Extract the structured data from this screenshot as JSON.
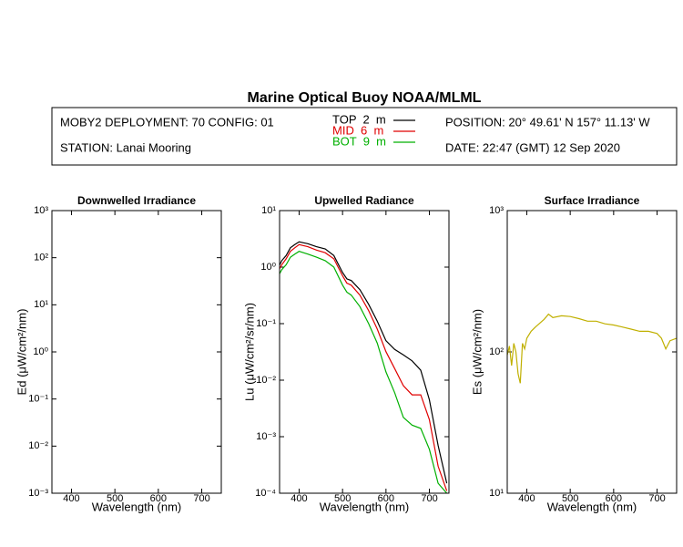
{
  "title": "Marine Optical Buoy NOAA/MLML",
  "header": {
    "deployment": "MOBY2 DEPLOYMENT: 70 CONFIG: 01",
    "station": "STATION: Lanai Mooring",
    "position": "POSITION: 20° 49.61' N   157° 11.13' W",
    "date": "DATE: 22:47 (GMT) 12 Sep 2020"
  },
  "chart_data": [
    {
      "type": "line",
      "title": "Downwelled Irradiance",
      "xlabel": "Wavelength (nm)",
      "ylabel": "Ed  (μW/cm²/nm)",
      "log_y": true,
      "xlim": [
        355,
        745
      ],
      "xticks": [
        400,
        500,
        600,
        700
      ],
      "ylim": [
        0.001,
        1000
      ],
      "yticks": [
        {
          "value": 0.001,
          "label": "10⁻³"
        },
        {
          "value": 0.01,
          "label": "10⁻²"
        },
        {
          "value": 0.1,
          "label": "10⁻¹"
        },
        {
          "value": 1,
          "label": "10⁰"
        },
        {
          "value": 10,
          "label": "10¹"
        },
        {
          "value": 100,
          "label": "10²"
        },
        {
          "value": 1000,
          "label": "10³"
        }
      ]
    },
    {
      "type": "line",
      "title": "Upwelled Radiance",
      "xlabel": "Wavelength (nm)",
      "ylabel": "Lu  (μW/cm²/sr/nm)",
      "log_y": true,
      "xlim": [
        355,
        745
      ],
      "xticks": [
        400,
        500,
        600,
        700
      ],
      "ylim": [
        0.0001,
        10
      ],
      "yticks": [
        {
          "value": 0.0001,
          "label": "10⁻⁴"
        },
        {
          "value": 0.001,
          "label": "10⁻³"
        },
        {
          "value": 0.01,
          "label": "10⁻²"
        },
        {
          "value": 0.1,
          "label": "10⁻¹"
        },
        {
          "value": 1,
          "label": "10⁰"
        },
        {
          "value": 10,
          "label": "10¹"
        }
      ],
      "x": [
        350,
        360,
        370,
        380,
        390,
        400,
        410,
        420,
        440,
        460,
        480,
        500,
        510,
        520,
        540,
        560,
        580,
        600,
        620,
        640,
        660,
        680,
        700,
        720,
        740
      ],
      "series": [
        {
          "name": "TOP  2  m",
          "color": "#000000",
          "values": [
            0.9,
            1.3,
            1.6,
            2.2,
            2.5,
            2.8,
            2.7,
            2.6,
            2.3,
            2.1,
            1.6,
            0.8,
            0.62,
            0.58,
            0.4,
            0.22,
            0.11,
            0.05,
            0.035,
            0.028,
            0.022,
            0.015,
            0.0045,
            0.0007,
            0.00015
          ]
        },
        {
          "name": "MID  6  m",
          "color": "#e00000",
          "values": [
            0.8,
            1.1,
            1.4,
            1.9,
            2.2,
            2.5,
            2.4,
            2.3,
            2.0,
            1.8,
            1.4,
            0.7,
            0.52,
            0.48,
            0.32,
            0.17,
            0.08,
            0.032,
            0.016,
            0.008,
            0.0055,
            0.0055,
            0.002,
            0.0003,
            0.00011
          ]
        },
        {
          "name": "BOT  9  m",
          "color": "#00b000",
          "values": [
            0.65,
            0.9,
            1.1,
            1.5,
            1.7,
            1.9,
            1.8,
            1.7,
            1.5,
            1.3,
            1.0,
            0.48,
            0.36,
            0.32,
            0.2,
            0.1,
            0.045,
            0.014,
            0.006,
            0.0022,
            0.0016,
            0.0014,
            0.0006,
            0.00015,
            0.0001
          ]
        }
      ]
    },
    {
      "type": "line",
      "title": "Surface Irradiance",
      "xlabel": "Wavelength (nm)",
      "ylabel": "Es  (μW/cm²/nm)",
      "log_y": true,
      "xlim": [
        355,
        745
      ],
      "xticks": [
        400,
        500,
        600,
        700
      ],
      "ylim": [
        10,
        1000
      ],
      "yticks": [
        {
          "value": 10,
          "label": "10¹"
        },
        {
          "value": 100,
          "label": "10²"
        },
        {
          "value": 1000,
          "label": "10³"
        }
      ],
      "x": [
        355,
        360,
        365,
        370,
        375,
        380,
        385,
        390,
        395,
        400,
        410,
        420,
        430,
        440,
        450,
        460,
        480,
        500,
        520,
        540,
        560,
        580,
        600,
        620,
        640,
        660,
        680,
        700,
        710,
        720,
        730,
        745
      ],
      "series": [
        {
          "name": "Es",
          "color": "#c0b000",
          "values": [
            95,
            110,
            80,
            115,
            100,
            70,
            60,
            115,
            105,
            125,
            140,
            150,
            160,
            170,
            185,
            175,
            180,
            178,
            172,
            165,
            165,
            158,
            155,
            150,
            145,
            140,
            140,
            135,
            125,
            105,
            120,
            125
          ]
        }
      ]
    }
  ]
}
